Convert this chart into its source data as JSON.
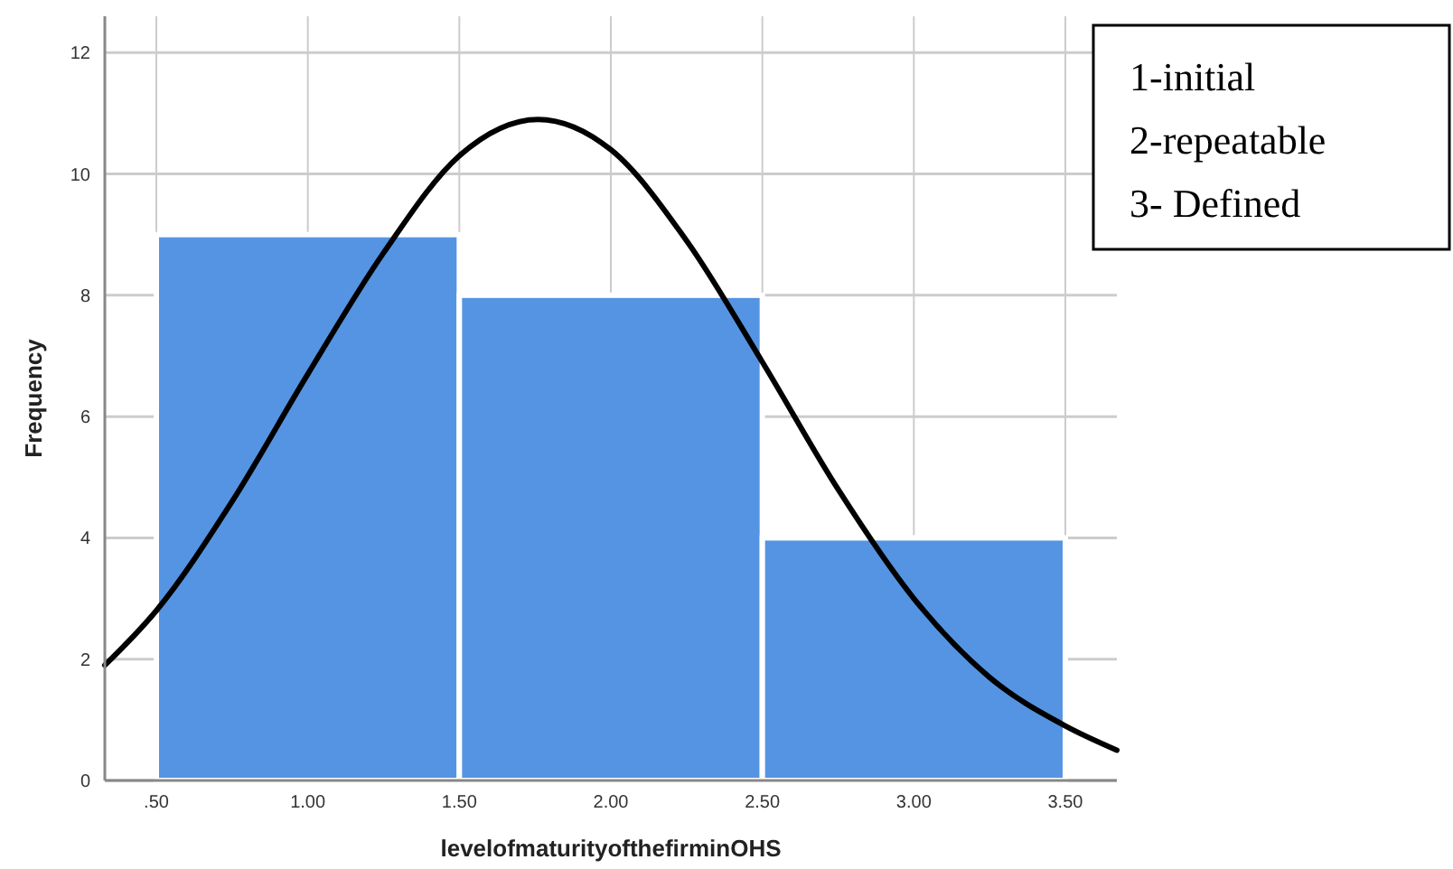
{
  "chart_data": {
    "type": "histogram",
    "xlabel": "levelofmaturityofthefirminOHS",
    "ylabel": "Frequency",
    "bins": [
      0.5,
      1.5,
      2.5,
      3.5
    ],
    "values": [
      9,
      8,
      4
    ],
    "color": "#5594e2",
    "series": [
      {
        "type": "line",
        "color": "#000000",
        "x": [
          0.33,
          0.5,
          0.75,
          1.0,
          1.25,
          1.5,
          1.76,
          2.0,
          2.25,
          2.5,
          2.75,
          3.0,
          3.25,
          3.5,
          3.67
        ],
        "values": [
          1.9,
          2.8,
          4.6,
          6.7,
          8.7,
          10.3,
          10.9,
          10.4,
          8.9,
          6.9,
          4.8,
          3.0,
          1.7,
          0.9,
          0.5
        ]
      }
    ],
    "xlim": [
      0.33,
      3.67
    ],
    "ylim": [
      0,
      12.6
    ],
    "xticks": [
      {
        "value": 0.5,
        "label": ".50"
      },
      {
        "value": 1,
        "label": "1.00"
      },
      {
        "value": 1.5,
        "label": "1.50"
      },
      {
        "value": 2,
        "label": "2.00"
      },
      {
        "value": 2.5,
        "label": "2.50"
      },
      {
        "value": 3,
        "label": "3.00"
      },
      {
        "value": 3.5,
        "label": "3.50"
      }
    ],
    "yticks": [
      0,
      2,
      4,
      6,
      8,
      10,
      12
    ],
    "grid": true,
    "annotations": [
      "1-initial",
      "2-repeatable",
      "3- Defined"
    ]
  }
}
